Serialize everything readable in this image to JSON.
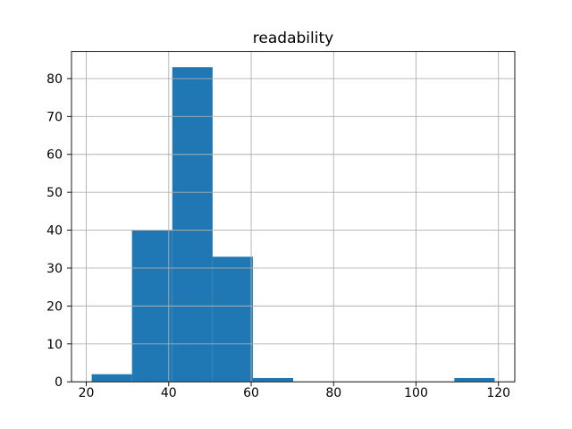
{
  "figure": {
    "background": "#ffffff"
  },
  "chart_data": {
    "type": "bar",
    "subtype": "histogram",
    "title": "readability",
    "xlabel": "",
    "ylabel": "",
    "bin_edges": [
      21.31,
      31.08,
      40.86,
      50.64,
      60.41,
      70.19,
      79.96,
      89.74,
      99.52,
      109.29,
      119.07
    ],
    "counts": [
      2,
      40,
      83,
      33,
      1,
      0,
      0,
      0,
      0,
      1
    ],
    "xticks": [
      20,
      40,
      60,
      80,
      100,
      120
    ],
    "yticks": [
      0,
      10,
      20,
      30,
      40,
      50,
      60,
      70,
      80
    ],
    "xlim": [
      16.41,
      123.96
    ],
    "ylim": [
      0,
      87.15
    ],
    "grid": true,
    "grid_over_bars": true,
    "legend": "none",
    "bar_color": "#1f77b4",
    "grid_color": "#b0b0b0",
    "axis_color": "#000000",
    "text_color": "#000000"
  }
}
